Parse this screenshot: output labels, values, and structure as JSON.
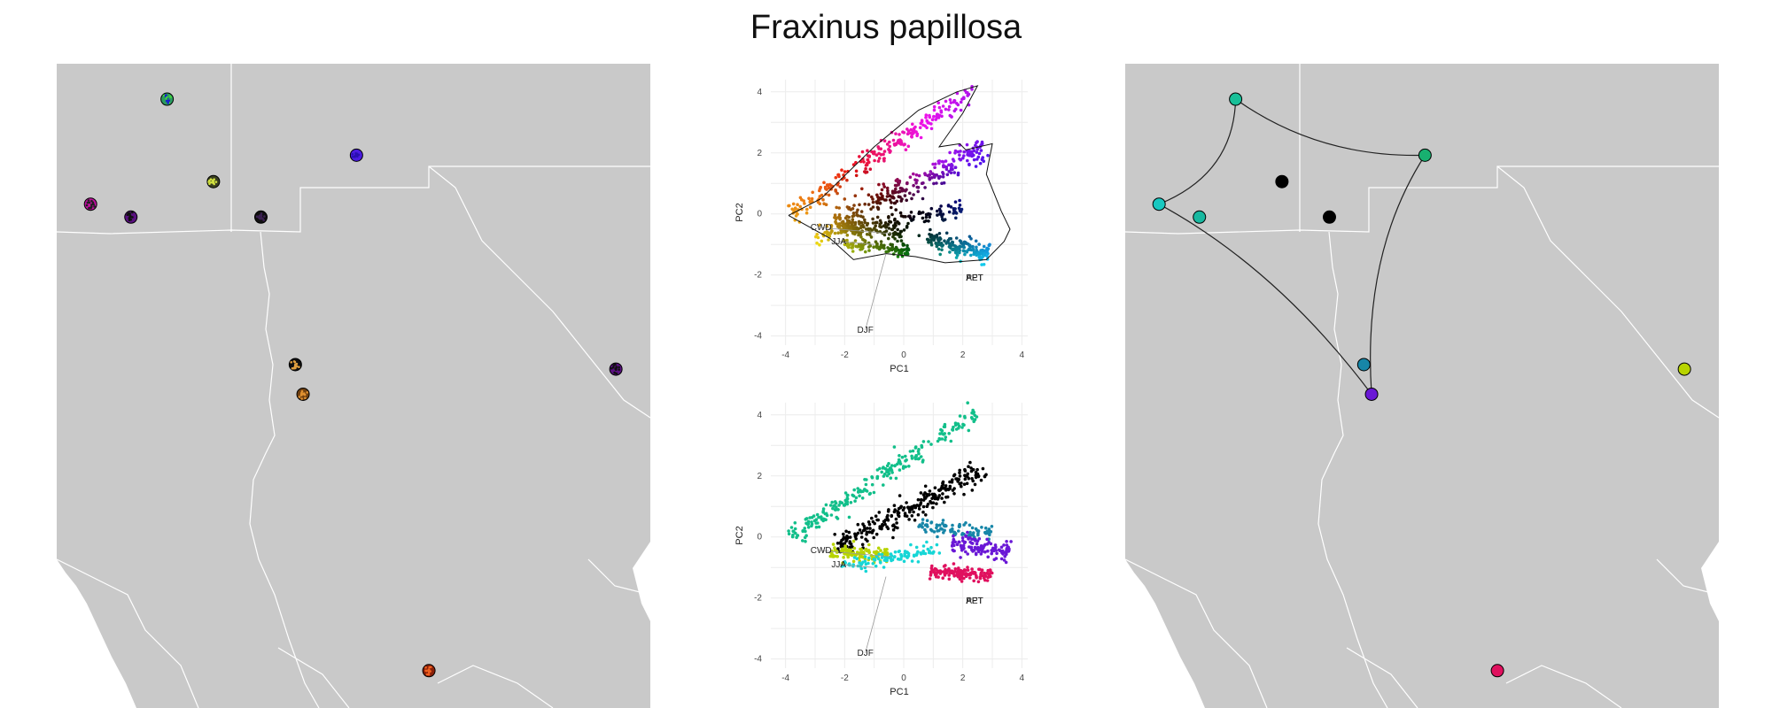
{
  "title": "Fraxinus papillosa",
  "colors": {
    "land": "#c9c9c9",
    "border": "#ffffff",
    "point_edge": "#000000",
    "hull": "#222222"
  },
  "chart_data": [
    {
      "id": "pca-top",
      "type": "scatter",
      "title": "",
      "xlabel": "PC1",
      "ylabel": "PC2",
      "xlim": [
        -4.5,
        4.2
      ],
      "ylim": [
        -4.3,
        4.4
      ],
      "xticks": [
        -4,
        -2,
        0,
        2,
        4
      ],
      "yticks": [
        -4,
        -2,
        0,
        2,
        4
      ],
      "grid": true,
      "color_mode": "position_gradient",
      "hull_outline": true,
      "bands": [
        {
          "x0": -3.8,
          "y0": -0.05,
          "x1": 2.4,
          "y1": 4.1,
          "width": 0.45,
          "n": 230
        },
        {
          "x0": -2.3,
          "y0": -0.3,
          "x1": 2.8,
          "y1": 2.2,
          "width": 0.55,
          "n": 260
        },
        {
          "x0": -3.0,
          "y0": -0.7,
          "x1": 2.0,
          "y1": 0.2,
          "width": 0.45,
          "n": 150
        },
        {
          "x0": -2.0,
          "y0": -1.0,
          "x1": 0.2,
          "y1": -1.2,
          "width": 0.3,
          "n": 100
        },
        {
          "x0": 0.8,
          "y0": -0.8,
          "x1": 2.9,
          "y1": -1.3,
          "width": 0.4,
          "n": 170
        },
        {
          "x0": -2.3,
          "y0": -0.4,
          "x1": 0.0,
          "y1": -0.7,
          "width": 0.3,
          "n": 90
        }
      ],
      "annotations": [
        {
          "label": "CWD",
          "x": -2.8,
          "y": -0.45,
          "tx": -0.4,
          "ty": -0.65
        },
        {
          "label": "JJA",
          "x": -2.2,
          "y": -0.9,
          "tx": -1.0,
          "ty": -1.0
        },
        {
          "label": "DJF",
          "x": -1.3,
          "y": -3.8,
          "tx": -0.6,
          "ty": -1.3
        },
        {
          "label": "AET",
          "x": 2.4,
          "y": -2.1,
          "tx": 2.4,
          "ty": -2.1
        },
        {
          "label": "PPT",
          "x": 2.4,
          "y": -2.1,
          "tx": 2.4,
          "ty": -2.1
        }
      ]
    },
    {
      "id": "pca-bottom",
      "type": "scatter",
      "title": "",
      "xlabel": "PC1",
      "ylabel": "PC2",
      "xlim": [
        -4.5,
        4.2
      ],
      "ylim": [
        -4.3,
        4.4
      ],
      "xticks": [
        -4,
        -2,
        0,
        2,
        4
      ],
      "yticks": [
        -4,
        -2,
        0,
        2,
        4
      ],
      "grid": true,
      "color_mode": "cluster",
      "hull_outline": false,
      "bands": [
        {
          "x0": -3.8,
          "y0": -0.05,
          "x1": 2.4,
          "y1": 4.1,
          "width": 0.45,
          "n": 230,
          "color": "#12bf8a"
        },
        {
          "x0": -2.3,
          "y0": -0.3,
          "x1": 2.8,
          "y1": 2.2,
          "width": 0.55,
          "n": 260,
          "color": "#000000"
        },
        {
          "x0": -2.5,
          "y0": -0.55,
          "x1": -0.5,
          "y1": -0.55,
          "width": 0.35,
          "n": 110,
          "color": "#b8d400"
        },
        {
          "x0": -2.1,
          "y0": -1.0,
          "x1": 1.2,
          "y1": -0.4,
          "width": 0.3,
          "n": 100,
          "color": "#16d6d6"
        },
        {
          "x0": 0.5,
          "y0": 0.35,
          "x1": 3.0,
          "y1": 0.1,
          "width": 0.35,
          "n": 90,
          "color": "#1786a8"
        },
        {
          "x0": 1.6,
          "y0": -0.2,
          "x1": 3.6,
          "y1": -0.5,
          "width": 0.45,
          "n": 120,
          "color": "#6a18d6"
        },
        {
          "x0": 0.9,
          "y0": -1.1,
          "x1": 3.0,
          "y1": -1.3,
          "width": 0.3,
          "n": 140,
          "color": "#e0105e"
        }
      ],
      "annotations": [
        {
          "label": "CWD",
          "x": -2.8,
          "y": -0.45,
          "tx": -0.4,
          "ty": -0.65
        },
        {
          "label": "JJA",
          "x": -2.2,
          "y": -0.9,
          "tx": -1.0,
          "ty": -1.0
        },
        {
          "label": "DJF",
          "x": -1.3,
          "y": -3.8,
          "tx": -0.6,
          "ty": -1.3
        },
        {
          "label": "AET",
          "x": 2.4,
          "y": -2.1,
          "tx": 2.4,
          "ty": -2.1
        },
        {
          "label": "PPT",
          "x": 2.4,
          "y": -2.1,
          "tx": 2.4,
          "ty": -2.1
        }
      ]
    }
  ],
  "maps": {
    "left": {
      "points": [
        {
          "u": 0.186,
          "v": 0.055,
          "color": "#2a9a60",
          "speckle": [
            "#1818d0",
            "#40d040"
          ]
        },
        {
          "u": 0.505,
          "v": 0.142,
          "color": "#4a1be0",
          "speckle": [
            "#2a10b0"
          ]
        },
        {
          "u": 0.264,
          "v": 0.183,
          "color": "#3a4020",
          "speckle": [
            "#d0e040"
          ]
        },
        {
          "u": 0.057,
          "v": 0.218,
          "color": "#c010a0",
          "speckle": [
            "#202020"
          ]
        },
        {
          "u": 0.125,
          "v": 0.238,
          "color": "#5a1080",
          "speckle": [
            "#101010"
          ]
        },
        {
          "u": 0.344,
          "v": 0.238,
          "color": "#101010",
          "speckle": [
            "#3a2050"
          ]
        },
        {
          "u": 0.402,
          "v": 0.467,
          "color": "#101010",
          "speckle": [
            "#e0a040"
          ]
        },
        {
          "u": 0.415,
          "v": 0.513,
          "color": "#704010",
          "speckle": [
            "#e09030"
          ]
        },
        {
          "u": 0.942,
          "v": 0.474,
          "color": "#5a1080",
          "speckle": [
            "#101010"
          ]
        },
        {
          "u": 0.627,
          "v": 0.942,
          "color": "#8a2008",
          "speckle": [
            "#f06020"
          ]
        }
      ]
    },
    "right": {
      "points": [
        {
          "u": 0.186,
          "v": 0.055,
          "color": "#18bf98"
        },
        {
          "u": 0.505,
          "v": 0.142,
          "color": "#18b070"
        },
        {
          "u": 0.264,
          "v": 0.183,
          "color": "#000000"
        },
        {
          "u": 0.057,
          "v": 0.218,
          "color": "#18c8c0"
        },
        {
          "u": 0.125,
          "v": 0.238,
          "color": "#18b8a0"
        },
        {
          "u": 0.344,
          "v": 0.238,
          "color": "#000000"
        },
        {
          "u": 0.402,
          "v": 0.467,
          "color": "#1786a8"
        },
        {
          "u": 0.415,
          "v": 0.513,
          "color": "#6a18d6"
        },
        {
          "u": 0.942,
          "v": 0.474,
          "color": "#b8d400"
        },
        {
          "u": 0.627,
          "v": 0.942,
          "color": "#e0105e"
        }
      ],
      "hull_point_order": [
        0,
        1,
        7,
        3
      ]
    }
  }
}
